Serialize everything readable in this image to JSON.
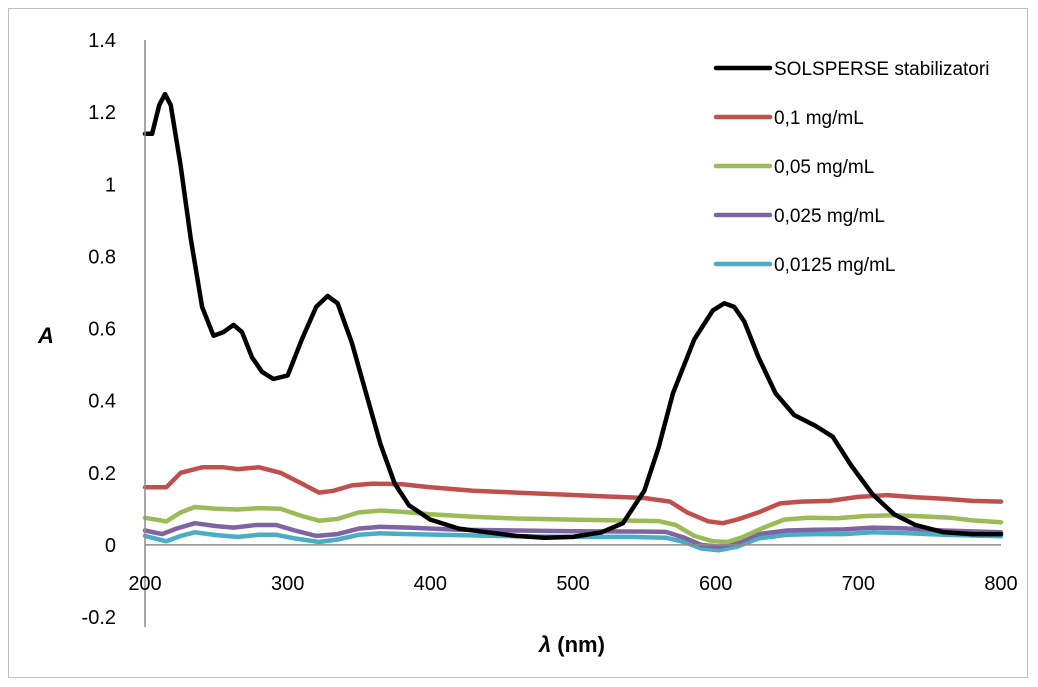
{
  "chart_data": {
    "type": "line",
    "title": "",
    "xlabel": "(nm)",
    "xlabel_symbol": "λ",
    "ylabel": "A",
    "xlim": [
      200,
      800
    ],
    "ylim": [
      -0.2,
      1.4
    ],
    "xticks": [
      "200",
      "300",
      "400",
      "500",
      "600",
      "700",
      "800"
    ],
    "yticks": [
      "-0.2",
      "0",
      "0.2",
      "0.4",
      "0.6",
      "0.8",
      "1",
      "1.2",
      "1.4"
    ],
    "grid": false,
    "legend_position": "top-right",
    "series": [
      {
        "name": "SOLSPERSE stabilizatori",
        "color": "#000000",
        "points": [
          [
            200,
            1.14
          ],
          [
            205,
            1.14
          ],
          [
            210,
            1.22
          ],
          [
            214,
            1.25
          ],
          [
            218,
            1.22
          ],
          [
            225,
            1.05
          ],
          [
            232,
            0.85
          ],
          [
            240,
            0.66
          ],
          [
            248,
            0.58
          ],
          [
            255,
            0.59
          ],
          [
            262,
            0.61
          ],
          [
            268,
            0.59
          ],
          [
            275,
            0.52
          ],
          [
            282,
            0.48
          ],
          [
            290,
            0.46
          ],
          [
            300,
            0.47
          ],
          [
            310,
            0.57
          ],
          [
            320,
            0.66
          ],
          [
            328,
            0.69
          ],
          [
            335,
            0.67
          ],
          [
            345,
            0.56
          ],
          [
            355,
            0.42
          ],
          [
            365,
            0.28
          ],
          [
            375,
            0.17
          ],
          [
            385,
            0.11
          ],
          [
            400,
            0.07
          ],
          [
            420,
            0.045
          ],
          [
            440,
            0.035
          ],
          [
            460,
            0.025
          ],
          [
            480,
            0.02
          ],
          [
            500,
            0.022
          ],
          [
            520,
            0.035
          ],
          [
            535,
            0.06
          ],
          [
            550,
            0.15
          ],
          [
            560,
            0.27
          ],
          [
            570,
            0.42
          ],
          [
            585,
            0.57
          ],
          [
            598,
            0.65
          ],
          [
            606,
            0.67
          ],
          [
            613,
            0.66
          ],
          [
            620,
            0.62
          ],
          [
            630,
            0.52
          ],
          [
            642,
            0.42
          ],
          [
            655,
            0.36
          ],
          [
            670,
            0.33
          ],
          [
            682,
            0.3
          ],
          [
            695,
            0.22
          ],
          [
            710,
            0.14
          ],
          [
            725,
            0.085
          ],
          [
            740,
            0.055
          ],
          [
            760,
            0.035
          ],
          [
            780,
            0.03
          ],
          [
            800,
            0.03
          ]
        ]
      },
      {
        "name": "0,1 mg/mL",
        "color": "#c0504d",
        "points": [
          [
            200,
            0.16
          ],
          [
            210,
            0.16
          ],
          [
            215,
            0.16
          ],
          [
            225,
            0.2
          ],
          [
            240,
            0.215
          ],
          [
            255,
            0.215
          ],
          [
            265,
            0.21
          ],
          [
            280,
            0.215
          ],
          [
            295,
            0.2
          ],
          [
            310,
            0.17
          ],
          [
            322,
            0.145
          ],
          [
            332,
            0.15
          ],
          [
            345,
            0.165
          ],
          [
            360,
            0.17
          ],
          [
            380,
            0.168
          ],
          [
            400,
            0.16
          ],
          [
            430,
            0.15
          ],
          [
            460,
            0.145
          ],
          [
            490,
            0.14
          ],
          [
            520,
            0.135
          ],
          [
            550,
            0.13
          ],
          [
            568,
            0.12
          ],
          [
            580,
            0.09
          ],
          [
            595,
            0.065
          ],
          [
            605,
            0.06
          ],
          [
            615,
            0.07
          ],
          [
            630,
            0.09
          ],
          [
            645,
            0.115
          ],
          [
            660,
            0.12
          ],
          [
            680,
            0.122
          ],
          [
            700,
            0.133
          ],
          [
            720,
            0.138
          ],
          [
            740,
            0.132
          ],
          [
            760,
            0.128
          ],
          [
            780,
            0.122
          ],
          [
            800,
            0.12
          ]
        ]
      },
      {
        "name": "0,05 mg/mL",
        "color": "#9bbb59",
        "points": [
          [
            200,
            0.075
          ],
          [
            215,
            0.065
          ],
          [
            225,
            0.09
          ],
          [
            235,
            0.105
          ],
          [
            250,
            0.1
          ],
          [
            265,
            0.098
          ],
          [
            280,
            0.102
          ],
          [
            295,
            0.1
          ],
          [
            310,
            0.08
          ],
          [
            322,
            0.067
          ],
          [
            335,
            0.072
          ],
          [
            350,
            0.09
          ],
          [
            365,
            0.095
          ],
          [
            380,
            0.092
          ],
          [
            400,
            0.085
          ],
          [
            430,
            0.078
          ],
          [
            460,
            0.073
          ],
          [
            500,
            0.07
          ],
          [
            530,
            0.068
          ],
          [
            560,
            0.066
          ],
          [
            572,
            0.055
          ],
          [
            585,
            0.025
          ],
          [
            598,
            0.01
          ],
          [
            608,
            0.008
          ],
          [
            618,
            0.02
          ],
          [
            632,
            0.045
          ],
          [
            648,
            0.07
          ],
          [
            665,
            0.075
          ],
          [
            685,
            0.074
          ],
          [
            705,
            0.08
          ],
          [
            725,
            0.082
          ],
          [
            745,
            0.079
          ],
          [
            765,
            0.075
          ],
          [
            780,
            0.068
          ],
          [
            800,
            0.063
          ]
        ]
      },
      {
        "name": "0,025 mg/mL",
        "color": "#8064a2",
        "points": [
          [
            200,
            0.04
          ],
          [
            212,
            0.03
          ],
          [
            222,
            0.045
          ],
          [
            235,
            0.06
          ],
          [
            250,
            0.052
          ],
          [
            262,
            0.048
          ],
          [
            278,
            0.055
          ],
          [
            292,
            0.055
          ],
          [
            305,
            0.04
          ],
          [
            320,
            0.025
          ],
          [
            335,
            0.03
          ],
          [
            350,
            0.045
          ],
          [
            365,
            0.05
          ],
          [
            385,
            0.048
          ],
          [
            420,
            0.042
          ],
          [
            460,
            0.04
          ],
          [
            500,
            0.038
          ],
          [
            540,
            0.037
          ],
          [
            565,
            0.036
          ],
          [
            578,
            0.02
          ],
          [
            590,
            0.0
          ],
          [
            602,
            -0.005
          ],
          [
            615,
            0.005
          ],
          [
            630,
            0.03
          ],
          [
            650,
            0.04
          ],
          [
            670,
            0.042
          ],
          [
            690,
            0.043
          ],
          [
            710,
            0.048
          ],
          [
            730,
            0.046
          ],
          [
            760,
            0.04
          ],
          [
            800,
            0.035
          ]
        ]
      },
      {
        "name": "0,0125 mg/mL",
        "color": "#4bacc6",
        "points": [
          [
            200,
            0.025
          ],
          [
            215,
            0.01
          ],
          [
            225,
            0.025
          ],
          [
            235,
            0.035
          ],
          [
            250,
            0.027
          ],
          [
            265,
            0.022
          ],
          [
            280,
            0.028
          ],
          [
            292,
            0.028
          ],
          [
            305,
            0.018
          ],
          [
            322,
            0.008
          ],
          [
            335,
            0.015
          ],
          [
            350,
            0.028
          ],
          [
            365,
            0.032
          ],
          [
            385,
            0.03
          ],
          [
            420,
            0.027
          ],
          [
            460,
            0.024
          ],
          [
            500,
            0.022
          ],
          [
            540,
            0.022
          ],
          [
            565,
            0.02
          ],
          [
            578,
            0.008
          ],
          [
            590,
            -0.01
          ],
          [
            602,
            -0.015
          ],
          [
            615,
            -0.005
          ],
          [
            630,
            0.018
          ],
          [
            650,
            0.028
          ],
          [
            670,
            0.03
          ],
          [
            690,
            0.03
          ],
          [
            710,
            0.035
          ],
          [
            730,
            0.033
          ],
          [
            760,
            0.028
          ],
          [
            800,
            0.024
          ]
        ]
      }
    ]
  }
}
